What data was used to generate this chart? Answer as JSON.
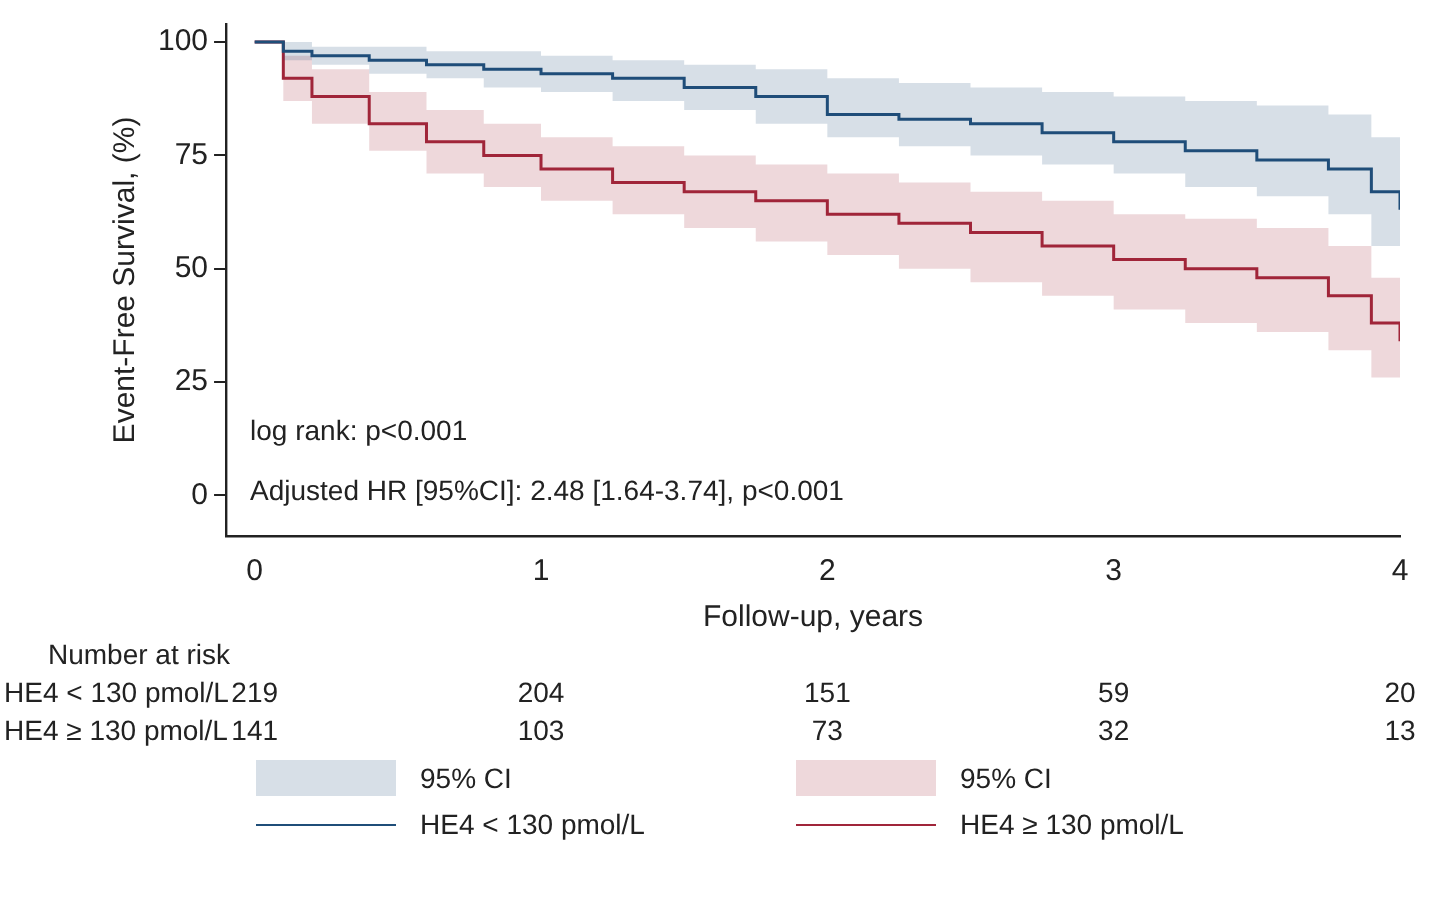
{
  "chart_data": {
    "type": "step",
    "xlabel": "Follow-up, years",
    "ylabel": "Event-Free Survival, (%)",
    "x": [
      0,
      0.1,
      0.2,
      0.4,
      0.6,
      0.8,
      1,
      1.25,
      1.5,
      1.75,
      2,
      2.25,
      2.5,
      2.75,
      3,
      3.25,
      3.5,
      3.75,
      3.9,
      4
    ],
    "series": [
      {
        "name": "HE4 < 130 pmol/L",
        "color": "#1f4e79",
        "values": [
          100,
          98,
          97,
          96,
          95,
          94,
          93,
          92,
          90,
          88,
          84,
          83,
          82,
          80,
          78,
          76,
          74,
          72,
          67,
          63
        ],
        "upper": [
          100,
          100,
          99,
          99,
          98,
          98,
          97,
          96,
          95,
          94,
          92,
          91,
          90,
          89,
          88,
          87,
          86,
          84,
          79,
          75
        ],
        "lower": [
          100,
          96,
          95,
          93,
          92,
          90,
          89,
          87,
          85,
          82,
          79,
          77,
          75,
          73,
          71,
          68,
          66,
          62,
          55,
          50
        ]
      },
      {
        "name": "HE4 ≥ 130 pmol/L",
        "color": "#a0253a",
        "values": [
          100,
          92,
          88,
          82,
          78,
          75,
          72,
          69,
          67,
          65,
          62,
          60,
          58,
          55,
          52,
          50,
          48,
          44,
          38,
          34
        ],
        "upper": [
          100,
          97,
          94,
          89,
          85,
          82,
          79,
          77,
          75,
          73,
          71,
          69,
          67,
          65,
          62,
          61,
          59,
          55,
          48,
          45
        ],
        "lower": [
          100,
          87,
          82,
          76,
          71,
          68,
          65,
          62,
          59,
          56,
          53,
          50,
          47,
          44,
          41,
          38,
          36,
          32,
          26,
          22
        ]
      }
    ],
    "xlim": [
      -0.1,
      4
    ],
    "xticks": [
      0,
      1,
      2,
      3,
      4
    ],
    "ylim": [
      -9,
      104
    ],
    "yticks": [
      0,
      25,
      50,
      75,
      100
    ],
    "grid": false,
    "legend": "bottom",
    "marker": "none",
    "line_style": "solid",
    "annotations": [
      "log rank: p<0.001",
      "Adjusted HR [95%CI]: 2.48 [1.64-3.74], p<0.001",
      "Number at risk",
      "HE4 < 130 pmol/L",
      "219",
      "204",
      "151",
      "59",
      "20",
      "HE4 ≥ 130 pmol/L",
      "141",
      "103",
      "73",
      "32",
      "13",
      "95% CI",
      "95% CI"
    ]
  }
}
